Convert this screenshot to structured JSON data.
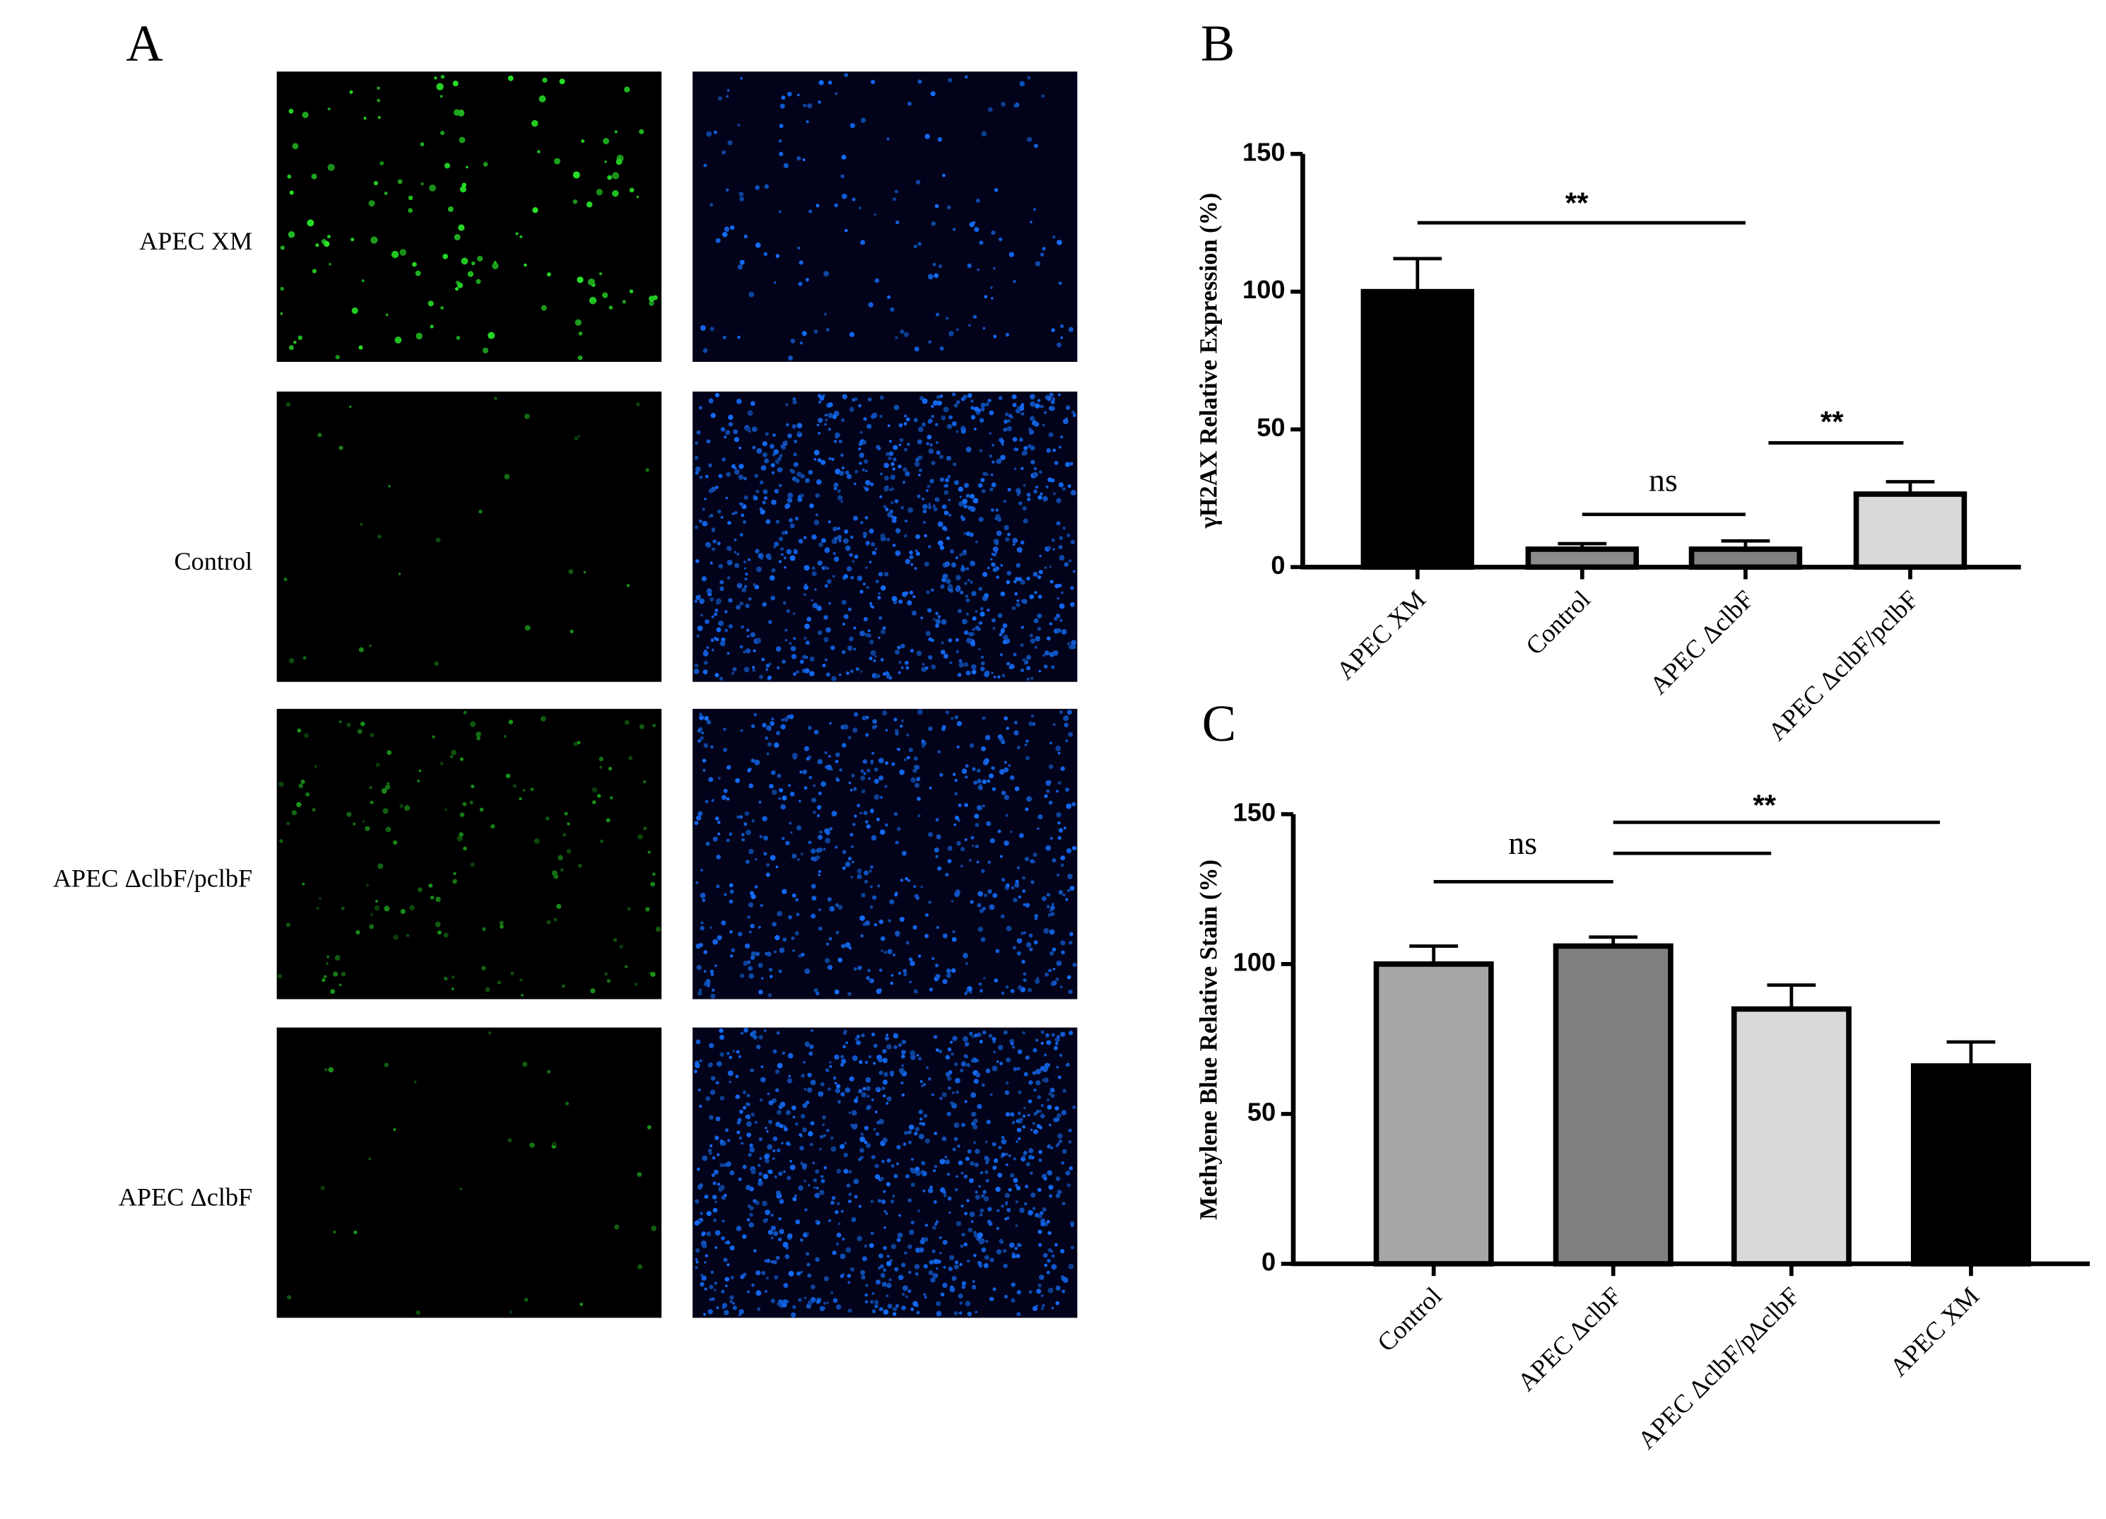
{
  "panel_a": {
    "label": "A",
    "rows": [
      "APEC XM",
      "Control",
      "APEC ΔclbF/pclbF",
      "APEC ΔclbF"
    ]
  },
  "chart_data": [
    {
      "type": "bar",
      "panel_label": "B",
      "ylabel": "γH2AX Relative Expression (%)",
      "categories": [
        "APEC XM",
        "Control",
        "APEC ΔclbF",
        "APEC ΔclbF/pclbF"
      ],
      "values": [
        100,
        6.5,
        6.5,
        26.5
      ],
      "errors": [
        12,
        2,
        3,
        4.5
      ],
      "colors": [
        "#000000",
        "#8c8c8c",
        "#808080",
        "#d9d9d9"
      ],
      "ylim": [
        0,
        150
      ],
      "yticks": [
        0,
        50,
        100,
        150
      ],
      "annotations": [
        "**",
        "ns",
        "**"
      ]
    },
    {
      "type": "bar",
      "panel_label": "C",
      "ylabel": "Methylene Blue Relative Stain (%)",
      "categories": [
        "Control",
        "APEC ΔclbF",
        "APEC ΔclbF/pΔclbF",
        "APEC XM"
      ],
      "values": [
        100,
        106,
        85,
        66
      ],
      "errors": [
        6,
        3,
        8,
        8
      ],
      "colors": [
        "#a6a6a8",
        "#808080",
        "#d9d9d9",
        "#000000"
      ],
      "ylim": [
        0,
        150
      ],
      "yticks": [
        0,
        50,
        100,
        150
      ],
      "annotations": [
        "ns",
        "**"
      ]
    }
  ]
}
